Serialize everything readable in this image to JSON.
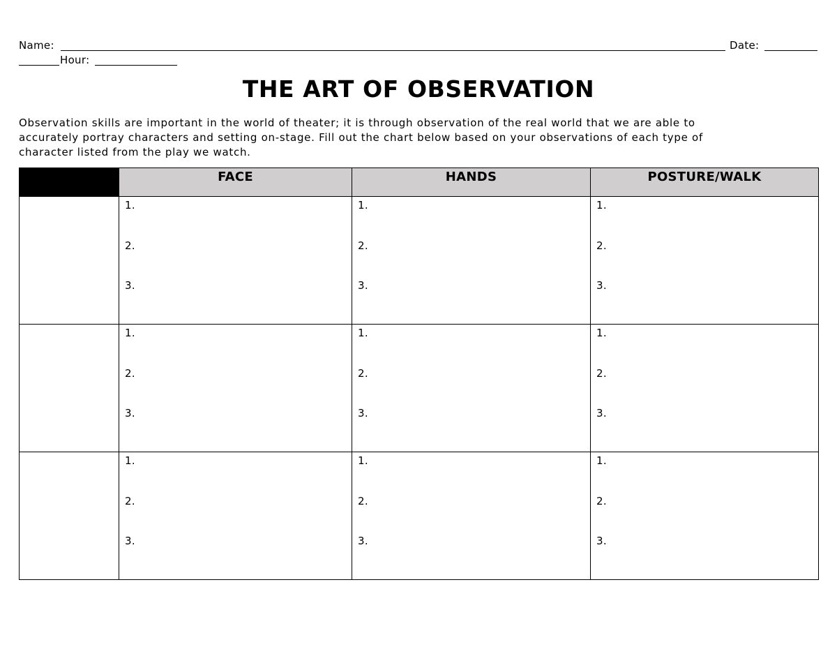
{
  "header": {
    "name_label": "Name:",
    "date_label": "Date:",
    "hour_label": "Hour:"
  },
  "title": "THE ART OF OBSERVATION",
  "intro_lines": [
    "Observation skills are important in the world of theater; it is through observation of the real world that we are able to",
    "accurately portray characters and setting on-stage.  Fill out the chart below based on your observations of each type of",
    "character listed from the play we watch."
  ],
  "table": {
    "columns": [
      "",
      "FACE",
      "HANDS",
      "POSTURE/WALK"
    ],
    "row_count": 3,
    "item_numbers": [
      "1.",
      "2.",
      "3."
    ],
    "header_fill": "#d0cece",
    "corner_fill": "#000000"
  }
}
